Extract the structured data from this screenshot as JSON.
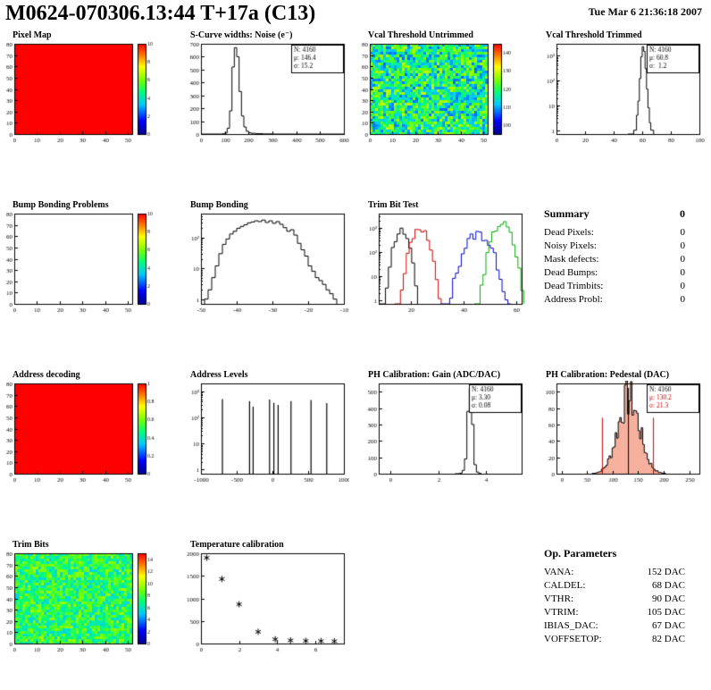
{
  "header": {
    "title": "M0624-070306.13:44 T+17a (C13)",
    "datetime": "Tue Mar  6 21:36:18 2007"
  },
  "summary": {
    "title": "Summary",
    "total": "0",
    "items": [
      {
        "label": "Dead Pixels:",
        "value": "0"
      },
      {
        "label": "Noisy Pixels:",
        "value": "0"
      },
      {
        "label": "Mask defects:",
        "value": "0"
      },
      {
        "label": "Dead Bumps:",
        "value": "0"
      },
      {
        "label": "Dead Trimbits:",
        "value": "0"
      },
      {
        "label": "Address Probl:",
        "value": "0"
      }
    ]
  },
  "op_parameters": {
    "title": "Op. Parameters",
    "items": [
      {
        "label": "VANA:",
        "value": "152 DAC"
      },
      {
        "label": "CALDEL:",
        "value": "68 DAC"
      },
      {
        "label": "VTHR:",
        "value": "90 DAC"
      },
      {
        "label": "VTRIM:",
        "value": "105 DAC"
      },
      {
        "label": "IBIAS_DAC:",
        "value": "67 DAC"
      },
      {
        "label": "VOFFSETOP:",
        "value": "82 DAC"
      }
    ]
  },
  "chart_data": [
    {
      "title": "Pixel Map",
      "type": "heatmap",
      "xlim": [
        0,
        52
      ],
      "ylim": [
        0,
        80
      ],
      "xticks": [
        0,
        10,
        20,
        30,
        40,
        50
      ],
      "yticks": [
        0,
        10,
        20,
        30,
        40,
        50,
        60,
        70,
        80
      ],
      "zrange": [
        0,
        10
      ],
      "zticks": [
        0,
        2,
        4,
        6,
        8,
        10
      ],
      "uniform": 10
    },
    {
      "title": "S-Curve widths: Noise (e⁻)",
      "type": "hist",
      "xlim": [
        0,
        600
      ],
      "ylim": [
        0,
        700
      ],
      "xticks": [
        0,
        100,
        200,
        300,
        400,
        500,
        600
      ],
      "yticks": [
        0,
        100,
        200,
        300,
        400,
        500,
        600,
        700
      ],
      "points": [
        [
          0,
          0
        ],
        [
          80,
          0
        ],
        [
          90,
          2
        ],
        [
          100,
          8
        ],
        [
          110,
          45
        ],
        [
          120,
          180
        ],
        [
          130,
          520
        ],
        [
          140,
          670
        ],
        [
          150,
          600
        ],
        [
          160,
          330
        ],
        [
          170,
          140
        ],
        [
          180,
          55
        ],
        [
          190,
          22
        ],
        [
          200,
          10
        ],
        [
          210,
          6
        ],
        [
          230,
          3
        ],
        [
          260,
          1
        ],
        [
          300,
          0
        ],
        [
          600,
          0
        ]
      ],
      "stats": [
        {
          "t": "N: 4160"
        },
        {
          "t": "μ: 146.4"
        },
        {
          "t": "σ: 15.2"
        }
      ]
    },
    {
      "title": "Vcal Threshold Untrimmed",
      "type": "heatmap",
      "xlim": [
        0,
        52
      ],
      "ylim": [
        0,
        80
      ],
      "xticks": [
        0,
        10,
        20,
        30,
        40,
        50
      ],
      "yticks": [
        0,
        10,
        20,
        30,
        40,
        50,
        60,
        70,
        80
      ],
      "zrange": [
        95,
        145
      ],
      "zticks": [
        100,
        110,
        120,
        130,
        140
      ],
      "mean": 118,
      "spread": 11,
      "seed": 3
    },
    {
      "title": "Vcal Threshold Trimmed",
      "type": "hist",
      "logy": true,
      "xlim": [
        0,
        100
      ],
      "ylim": [
        0.7,
        3000
      ],
      "xticks": [
        0,
        20,
        40,
        60,
        80,
        100
      ],
      "points": [
        [
          50,
          0
        ],
        [
          54,
          1
        ],
        [
          56,
          4
        ],
        [
          57,
          15
        ],
        [
          58,
          120
        ],
        [
          59,
          900
        ],
        [
          60,
          2300
        ],
        [
          61,
          1500
        ],
        [
          62,
          300
        ],
        [
          63,
          45
        ],
        [
          64,
          8
        ],
        [
          65,
          2
        ],
        [
          66,
          1
        ],
        [
          68,
          0
        ]
      ],
      "stats": [
        {
          "t": "N: 4160"
        },
        {
          "t": "μ: 60.8"
        },
        {
          "t": "σ:  1.2"
        }
      ]
    },
    {
      "title": "Bump Bonding Problems",
      "type": "heatmap",
      "empty": true,
      "xlim": [
        0,
        52
      ],
      "ylim": [
        0,
        80
      ],
      "xticks": [
        0,
        10,
        20,
        30,
        40,
        50
      ],
      "yticks": [
        0,
        10,
        20,
        30,
        40,
        50,
        60,
        70,
        80
      ],
      "zrange": [
        0,
        10
      ],
      "zticks": [
        0,
        2,
        4,
        6,
        8,
        10
      ]
    },
    {
      "title": "Bump Bonding",
      "type": "hist",
      "logy": true,
      "xlim": [
        -50,
        -10
      ],
      "ylim": [
        0.7,
        600
      ],
      "xticks": [
        -50,
        -40,
        -30,
        -20,
        -10
      ],
      "points": [
        [
          -49,
          1
        ],
        [
          -48,
          2
        ],
        [
          -47,
          5
        ],
        [
          -46,
          12
        ],
        [
          -45,
          30
        ],
        [
          -44,
          60
        ],
        [
          -43,
          90
        ],
        [
          -42,
          130
        ],
        [
          -41,
          160
        ],
        [
          -40,
          200
        ],
        [
          -39,
          230
        ],
        [
          -38,
          260
        ],
        [
          -37,
          300
        ],
        [
          -36,
          320
        ],
        [
          -35,
          350
        ],
        [
          -34,
          330
        ],
        [
          -33,
          370
        ],
        [
          -32,
          310
        ],
        [
          -31,
          350
        ],
        [
          -30,
          290
        ],
        [
          -29,
          330
        ],
        [
          -28,
          270
        ],
        [
          -27,
          210
        ],
        [
          -26,
          160
        ],
        [
          -25,
          180
        ],
        [
          -24,
          120
        ],
        [
          -23,
          65
        ],
        [
          -22,
          40
        ],
        [
          -21,
          25
        ],
        [
          -20,
          12
        ],
        [
          -19,
          8
        ],
        [
          -18,
          5
        ],
        [
          -17,
          4
        ],
        [
          -16,
          3
        ],
        [
          -15,
          2
        ],
        [
          -14,
          1.5
        ],
        [
          -13,
          1
        ],
        [
          -12,
          1
        ]
      ]
    },
    {
      "title": "Trim Bit Test",
      "type": "multihist",
      "logy": true,
      "xlim": [
        8,
        62
      ],
      "ylim": [
        0.7,
        4000
      ],
      "xticks": [
        20,
        40,
        60
      ],
      "series": [
        {
          "color": "#000000",
          "mean": 16,
          "sigma": 1.7,
          "amp": 800,
          "noise": 0.8,
          "seed": 11
        },
        {
          "color": "#cc0000",
          "mean": 23,
          "sigma": 2.0,
          "amp": 1000,
          "noise": 0.8,
          "seed": 12
        },
        {
          "color": "#0000cc",
          "mean": 45,
          "sigma": 3.0,
          "amp": 600,
          "noise": 0.9,
          "seed": 13
        },
        {
          "color": "#00aa00",
          "mean": 54,
          "sigma": 2.2,
          "amp": 1600,
          "noise": 0.8,
          "seed": 14
        }
      ]
    },
    {
      "title": "Address decoding",
      "type": "heatmap",
      "xlim": [
        0,
        52
      ],
      "ylim": [
        0,
        80
      ],
      "xticks": [
        0,
        10,
        20,
        30,
        40,
        50
      ],
      "yticks": [
        0,
        10,
        20,
        30,
        40,
        50,
        60,
        70,
        80
      ],
      "zrange": [
        0,
        1
      ],
      "zticks": [
        0,
        0.2,
        0.4,
        0.6,
        0.8,
        1
      ],
      "uniform": 1
    },
    {
      "title": "Address Levels",
      "type": "spikes",
      "logy": true,
      "xlim": [
        -1000,
        1000
      ],
      "ylim": [
        0.7,
        2000
      ],
      "xticks": [
        -1000,
        -500,
        0,
        500,
        1000
      ],
      "spikes": [
        [
          -700,
          500
        ],
        [
          -320,
          420
        ],
        [
          -270,
          260
        ],
        [
          -40,
          480
        ],
        [
          20,
          360
        ],
        [
          80,
          300
        ],
        [
          260,
          420
        ],
        [
          540,
          470
        ],
        [
          760,
          350
        ]
      ]
    },
    {
      "title": "PH Calibration: Gain (ADC/DAC)",
      "type": "hist",
      "xlim": [
        -0.5,
        5.5
      ],
      "ylim": [
        0,
        550
      ],
      "xticks": [
        0,
        2,
        4
      ],
      "yticks": [
        0,
        100,
        200,
        300,
        400,
        500
      ],
      "points": [
        [
          2.7,
          0
        ],
        [
          2.9,
          3
        ],
        [
          3.0,
          20
        ],
        [
          3.1,
          90
        ],
        [
          3.2,
          380
        ],
        [
          3.3,
          520
        ],
        [
          3.4,
          300
        ],
        [
          3.5,
          55
        ],
        [
          3.6,
          10
        ],
        [
          3.7,
          2
        ],
        [
          3.8,
          0
        ]
      ],
      "stats": [
        {
          "t": "N: 4160"
        },
        {
          "t": "μ: 3.30"
        },
        {
          "t": "σ: 0.08"
        }
      ]
    },
    {
      "title": "PH Calibration: Pedestal (DAC)",
      "type": "hist",
      "xlim": [
        -10,
        270
      ],
      "ylim": [
        0,
        110
      ],
      "xticks": [
        0,
        50,
        100,
        150,
        200,
        250
      ],
      "yticks": [
        0,
        20,
        40,
        60,
        80,
        100
      ],
      "gauss": {
        "mean": 130.2,
        "sigma": 21.3,
        "amp": 92,
        "from": 60,
        "to": 205,
        "step": 3,
        "noise": 0.55,
        "seed": 7
      },
      "fill": "rgba(235,80,40,0.45)",
      "vlines": [
        {
          "x": 80,
          "color": "#cc0000",
          "frac": 0.62
        },
        {
          "x": 131,
          "color": "#000000",
          "frac": 0.95
        },
        {
          "x": 180,
          "color": "#cc0000",
          "frac": 0.62
        }
      ],
      "stats": [
        {
          "t": "N: 4160",
          "c": "#000000"
        },
        {
          "t": "μ: 130.2",
          "c": "#cc0000"
        },
        {
          "t": "σ: 21.3",
          "c": "#cc0000"
        }
      ]
    },
    {
      "title": "Trim Bits",
      "type": "heatmap",
      "xlim": [
        0,
        52
      ],
      "ylim": [
        0,
        80
      ],
      "xticks": [
        0,
        10,
        20,
        30,
        40,
        50
      ],
      "yticks": [
        0,
        10,
        20,
        30,
        40,
        50,
        60,
        70,
        80
      ],
      "zrange": [
        0,
        15
      ],
      "zticks": [
        0,
        2,
        4,
        6,
        8,
        10,
        12,
        14
      ],
      "mean": 7.5,
      "spread": 2.2,
      "seed": 5
    },
    {
      "title": "Temperature calibration",
      "type": "scatter",
      "xlim": [
        0,
        7.5
      ],
      "ylim": [
        0,
        2000
      ],
      "xticks": [
        0,
        2,
        4,
        6
      ],
      "yticks": [
        0,
        500,
        1000,
        1500,
        2000
      ],
      "points": [
        [
          0.3,
          1900
        ],
        [
          1.1,
          1430
        ],
        [
          2.0,
          870
        ],
        [
          3.0,
          260
        ],
        [
          3.9,
          95
        ],
        [
          4.7,
          70
        ],
        [
          5.5,
          60
        ],
        [
          6.3,
          55
        ],
        [
          7.0,
          50
        ]
      ]
    }
  ]
}
